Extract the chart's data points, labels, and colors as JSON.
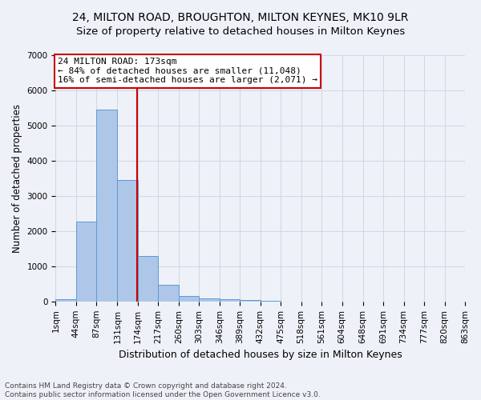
{
  "title": "24, MILTON ROAD, BROUGHTON, MILTON KEYNES, MK10 9LR",
  "subtitle": "Size of property relative to detached houses in Milton Keynes",
  "xlabel": "Distribution of detached houses by size in Milton Keynes",
  "ylabel": "Number of detached properties",
  "bin_edges": [
    1,
    44,
    87,
    131,
    174,
    217,
    260,
    303,
    346,
    389,
    432,
    475,
    518,
    561,
    604,
    648,
    691,
    734,
    777,
    820,
    863
  ],
  "bar_heights": [
    75,
    2280,
    5450,
    3450,
    1300,
    470,
    160,
    90,
    55,
    40,
    10,
    5,
    2,
    1,
    0,
    0,
    0,
    0,
    0,
    0
  ],
  "bar_color": "#aec6e8",
  "bar_edge_color": "#5b9bd5",
  "grid_color": "#d0d8e8",
  "background_color": "#eef2f8",
  "vline_x": 173,
  "vline_color": "#cc0000",
  "annotation_line1": "24 MILTON ROAD: 173sqm",
  "annotation_line2": "← 84% of detached houses are smaller (11,048)",
  "annotation_line3": "16% of semi-detached houses are larger (2,071) →",
  "annotation_box_color": "#ffffff",
  "annotation_border_color": "#cc0000",
  "ylim": [
    0,
    7000
  ],
  "tick_labels": [
    "1sqm",
    "44sqm",
    "87sqm",
    "131sqm",
    "174sqm",
    "217sqm",
    "260sqm",
    "303sqm",
    "346sqm",
    "389sqm",
    "432sqm",
    "475sqm",
    "518sqm",
    "561sqm",
    "604sqm",
    "648sqm",
    "691sqm",
    "734sqm",
    "777sqm",
    "820sqm",
    "863sqm"
  ],
  "footer_line1": "Contains HM Land Registry data © Crown copyright and database right 2024.",
  "footer_line2": "Contains public sector information licensed under the Open Government Licence v3.0.",
  "title_fontsize": 10,
  "subtitle_fontsize": 9.5,
  "xlabel_fontsize": 9,
  "ylabel_fontsize": 8.5,
  "tick_fontsize": 7.5,
  "annotation_fontsize": 8,
  "footer_fontsize": 6.5
}
